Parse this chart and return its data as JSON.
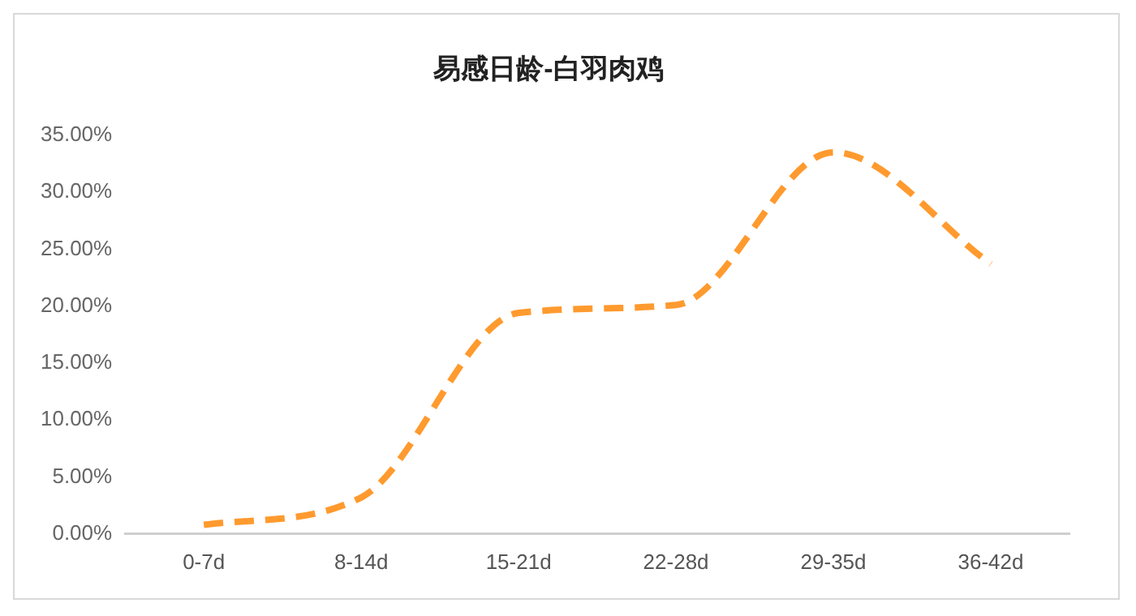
{
  "chart_data": {
    "type": "line",
    "title": "易感日龄-白羽肉鸡",
    "categories": [
      "0-7d",
      "8-14d",
      "15-21d",
      "22-28d",
      "29-35d",
      "36-42d"
    ],
    "series": [
      {
        "color": "#ff9a2e",
        "values": [
          0.8,
          3.2,
          19.4,
          20.1,
          33.5,
          23.7
        ]
      }
    ],
    "ylim": [
      0,
      35
    ],
    "yticks": [
      {
        "value": 0,
        "label": "0.00%"
      },
      {
        "value": 5,
        "label": "5.00%"
      },
      {
        "value": 10,
        "label": "10.00%"
      },
      {
        "value": 15,
        "label": "15.00%"
      },
      {
        "value": 20,
        "label": "20.00%"
      },
      {
        "value": 25,
        "label": "25.00%"
      },
      {
        "value": 30,
        "label": "30.00%"
      },
      {
        "value": 35,
        "label": "35.00%"
      }
    ],
    "grid": false,
    "legend": false,
    "marker": "none",
    "line_style": "dashed"
  }
}
